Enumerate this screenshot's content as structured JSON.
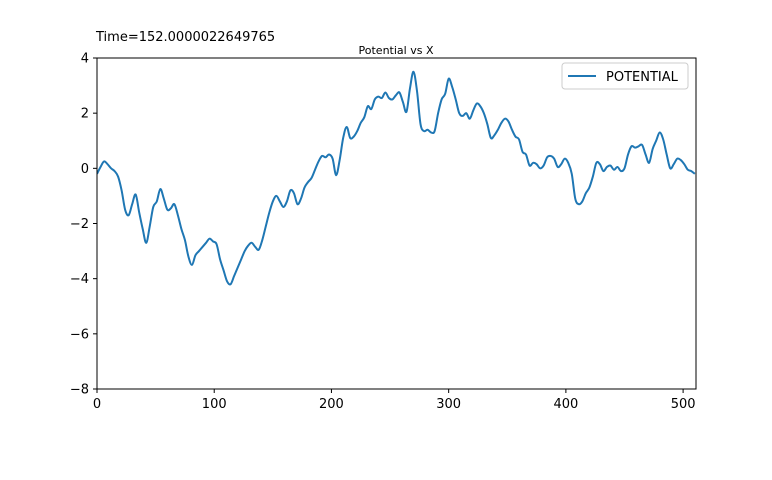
{
  "chart_data": {
    "type": "line",
    "suptitle": "Time=152.0000022649765",
    "title": "Potential vs X",
    "xlabel": "",
    "ylabel": "",
    "xlim": [
      0,
      511
    ],
    "ylim": [
      -8,
      4
    ],
    "xticks": [
      0,
      100,
      200,
      300,
      400,
      500
    ],
    "yticks": [
      -8,
      -6,
      -4,
      -2,
      0,
      2,
      4
    ],
    "grid": false,
    "legend_position": "top-right",
    "series": [
      {
        "name": "POTENTIAL",
        "color": "#1f77b4",
        "x": [
          0,
          3,
          6,
          9,
          12,
          15,
          18,
          21,
          24,
          27,
          30,
          33,
          36,
          39,
          42,
          45,
          48,
          51,
          54,
          57,
          60,
          63,
          66,
          69,
          72,
          75,
          78,
          81,
          84,
          87,
          90,
          93,
          96,
          99,
          102,
          105,
          108,
          111,
          114,
          117,
          120,
          123,
          126,
          129,
          132,
          135,
          138,
          141,
          144,
          147,
          150,
          153,
          156,
          159,
          162,
          165,
          168,
          171,
          174,
          177,
          180,
          183,
          186,
          189,
          192,
          195,
          198,
          201,
          204,
          207,
          210,
          213,
          216,
          219,
          222,
          225,
          228,
          231,
          234,
          237,
          240,
          243,
          246,
          249,
          252,
          255,
          258,
          261,
          264,
          267,
          270,
          273,
          276,
          279,
          282,
          285,
          288,
          291,
          294,
          297,
          300,
          303,
          306,
          309,
          312,
          315,
          318,
          321,
          324,
          327,
          330,
          333,
          336,
          339,
          342,
          345,
          348,
          351,
          354,
          357,
          360,
          363,
          366,
          369,
          372,
          375,
          378,
          381,
          384,
          387,
          390,
          393,
          396,
          399,
          402,
          405,
          408,
          411,
          414,
          417,
          420,
          423,
          426,
          429,
          432,
          435,
          438,
          441,
          444,
          447,
          450,
          453,
          456,
          459,
          462,
          465,
          468,
          471,
          474,
          477,
          480,
          483,
          486,
          489,
          492,
          495,
          498,
          501,
          504,
          507,
          510
        ],
        "y": [
          -0.2,
          0.05,
          0.25,
          0.15,
          0.0,
          -0.1,
          -0.3,
          -0.8,
          -1.5,
          -1.7,
          -1.3,
          -0.95,
          -1.6,
          -2.2,
          -2.7,
          -2.1,
          -1.4,
          -1.2,
          -0.75,
          -1.1,
          -1.5,
          -1.45,
          -1.3,
          -1.7,
          -2.2,
          -2.6,
          -3.2,
          -3.5,
          -3.15,
          -3.0,
          -2.85,
          -2.7,
          -2.55,
          -2.65,
          -2.75,
          -3.3,
          -3.7,
          -4.1,
          -4.2,
          -3.9,
          -3.6,
          -3.3,
          -3.0,
          -2.8,
          -2.7,
          -2.85,
          -2.95,
          -2.6,
          -2.1,
          -1.6,
          -1.2,
          -1.0,
          -1.2,
          -1.4,
          -1.2,
          -0.8,
          -0.9,
          -1.3,
          -1.1,
          -0.7,
          -0.5,
          -0.35,
          -0.05,
          0.25,
          0.45,
          0.4,
          0.5,
          0.35,
          -0.25,
          0.3,
          1.1,
          1.5,
          1.1,
          1.15,
          1.35,
          1.65,
          1.85,
          2.25,
          2.15,
          2.5,
          2.6,
          2.55,
          2.75,
          2.55,
          2.5,
          2.65,
          2.75,
          2.4,
          2.05,
          2.9,
          3.5,
          2.8,
          1.6,
          1.35,
          1.4,
          1.3,
          1.35,
          2.0,
          2.5,
          2.7,
          3.25,
          2.95,
          2.5,
          2.0,
          1.9,
          2.0,
          1.8,
          2.1,
          2.35,
          2.25,
          2.0,
          1.6,
          1.1,
          1.2,
          1.4,
          1.65,
          1.8,
          1.7,
          1.4,
          1.15,
          1.05,
          0.6,
          0.5,
          0.1,
          0.2,
          0.15,
          0.0,
          0.1,
          0.4,
          0.45,
          0.35,
          0.05,
          0.15,
          0.35,
          0.2,
          -0.2,
          -1.1,
          -1.3,
          -1.2,
          -0.9,
          -0.7,
          -0.3,
          0.2,
          0.15,
          -0.1,
          0.05,
          0.1,
          -0.05,
          0.05,
          -0.1,
          0.0,
          0.5,
          0.8,
          0.75,
          0.8,
          0.85,
          0.5,
          0.2,
          0.7,
          1.0,
          1.3,
          1.05,
          0.5,
          0.0,
          0.15,
          0.35,
          0.3,
          0.15,
          -0.05,
          -0.1,
          -0.2
        ]
      }
    ]
  }
}
